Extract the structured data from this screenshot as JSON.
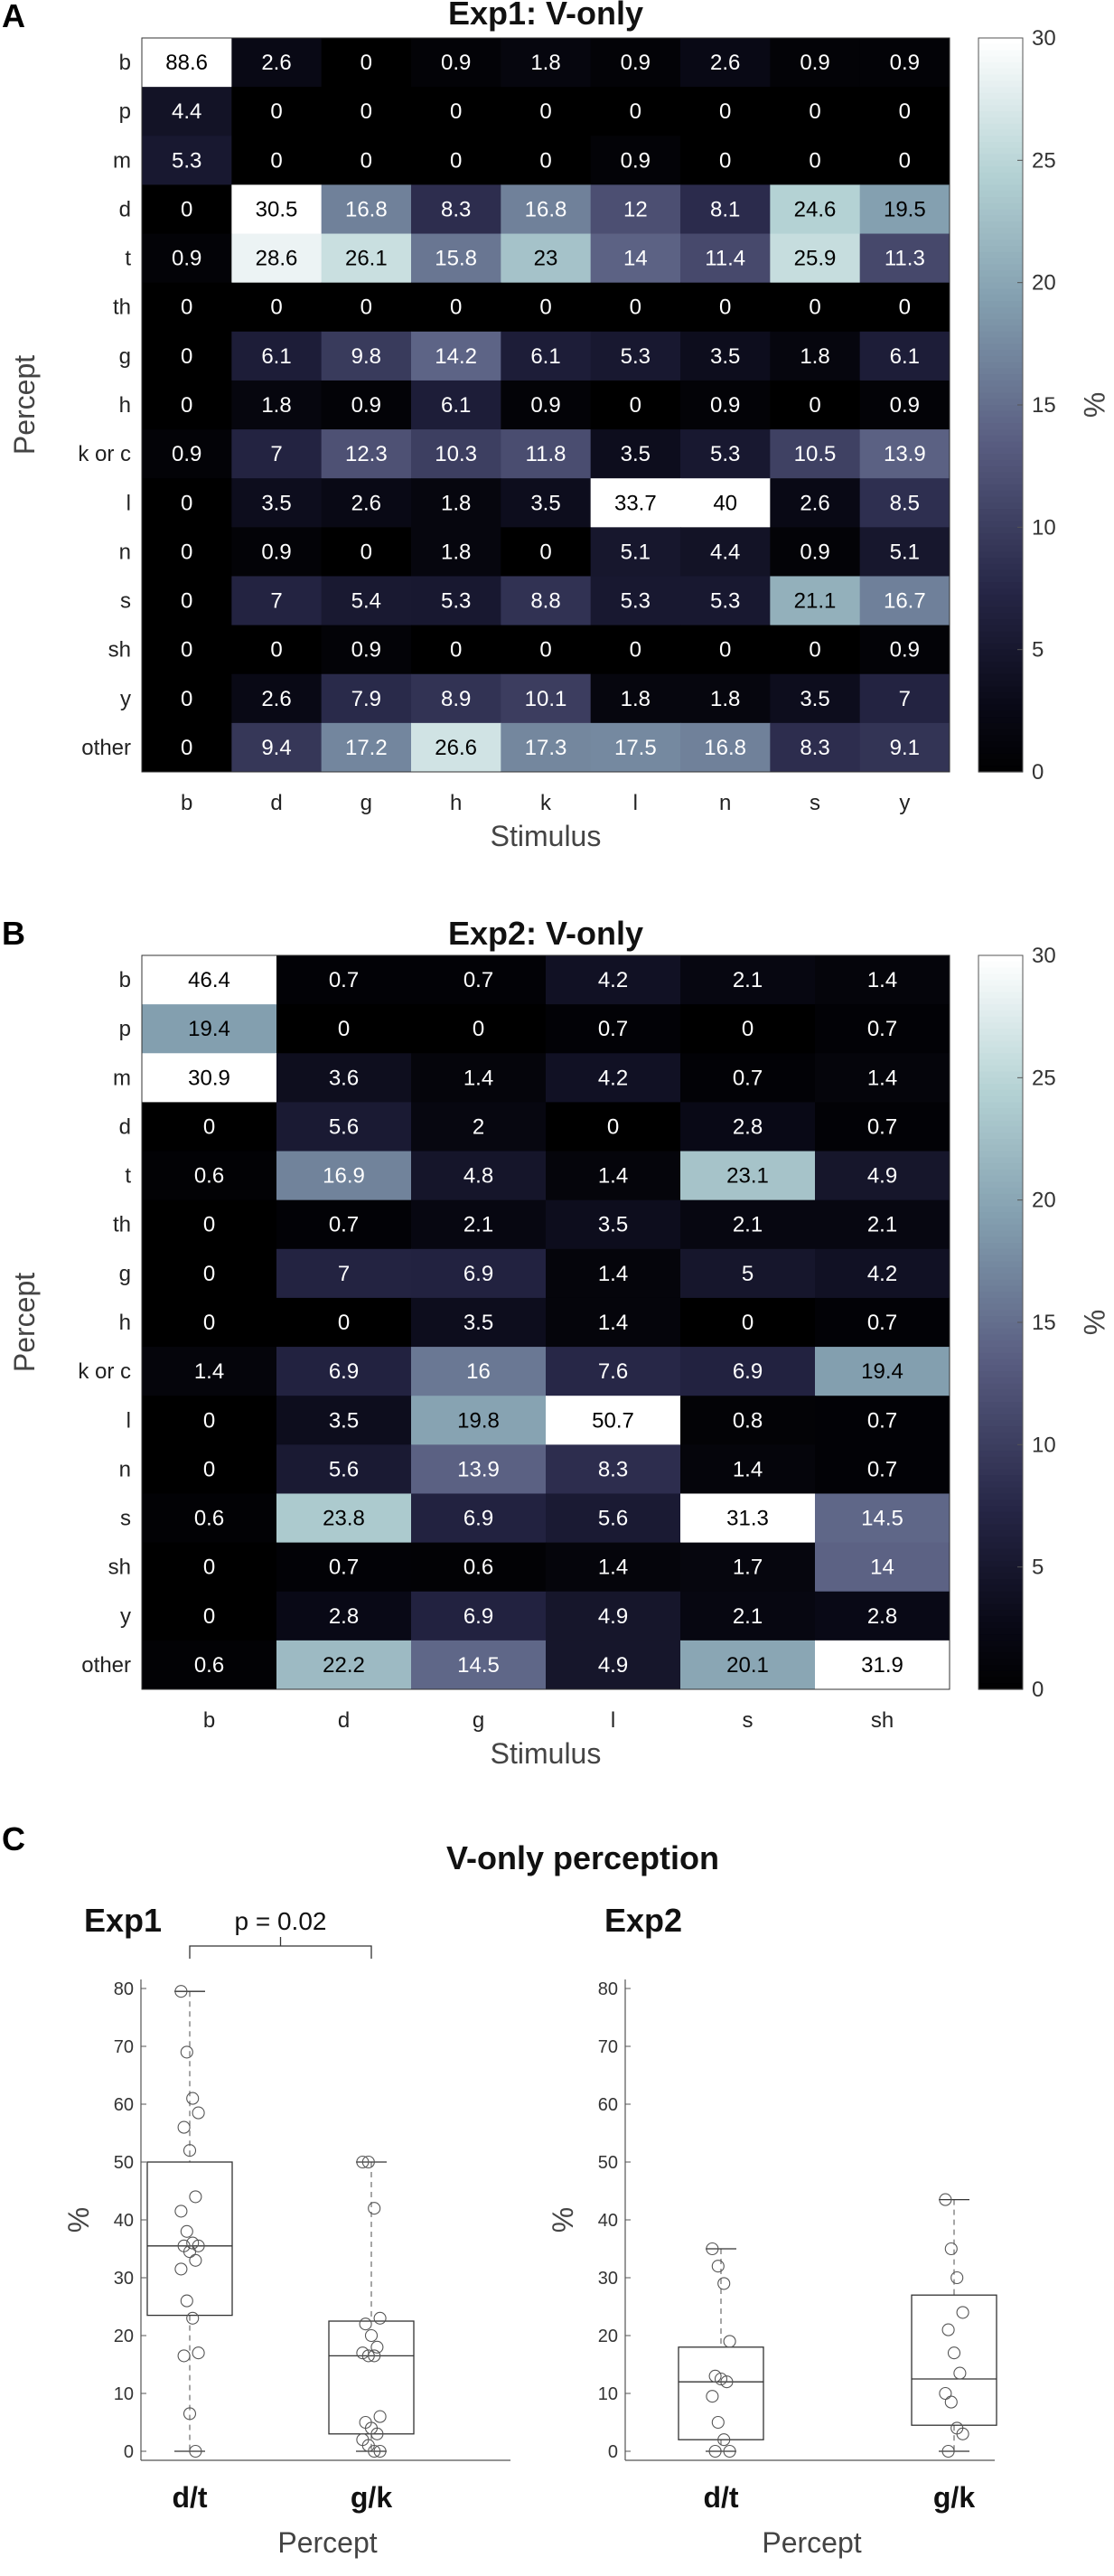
{
  "panels": {
    "a": "A",
    "b": "B",
    "c": "C"
  },
  "chart_data": [
    {
      "type": "heatmap",
      "title": "Exp1: V-only",
      "xlabel": "Stimulus",
      "ylabel": "Percept",
      "x": [
        "b",
        "d",
        "g",
        "h",
        "k",
        "l",
        "n",
        "s",
        "y"
      ],
      "y": [
        "b",
        "p",
        "m",
        "d",
        "t",
        "th",
        "g",
        "h",
        "k or c",
        "l",
        "n",
        "s",
        "sh",
        "y",
        "other"
      ],
      "values": [
        [
          88.6,
          2.6,
          0,
          0.9,
          1.8,
          0.9,
          2.6,
          0.9,
          0.9
        ],
        [
          4.4,
          0,
          0,
          0,
          0,
          0,
          0,
          0,
          0
        ],
        [
          5.3,
          0,
          0,
          0,
          0,
          0.9,
          0,
          0,
          0
        ],
        [
          0,
          30.5,
          16.8,
          8.3,
          16.8,
          12,
          8.1,
          24.6,
          19.5
        ],
        [
          0.9,
          28.6,
          26.1,
          15.8,
          23,
          14,
          11.4,
          25.9,
          11.3
        ],
        [
          0,
          0,
          0,
          0,
          0,
          0,
          0,
          0,
          0
        ],
        [
          0,
          6.1,
          9.8,
          14.2,
          6.1,
          5.3,
          3.5,
          1.8,
          6.1
        ],
        [
          0,
          1.8,
          0.9,
          6.1,
          0.9,
          0,
          0.9,
          0,
          0.9
        ],
        [
          0.9,
          7,
          12.3,
          10.3,
          11.8,
          3.5,
          5.3,
          10.5,
          13.9
        ],
        [
          0,
          3.5,
          2.6,
          1.8,
          3.5,
          33.7,
          40,
          2.6,
          8.5
        ],
        [
          0,
          0.9,
          0,
          1.8,
          0,
          5.1,
          4.4,
          0.9,
          5.1
        ],
        [
          0,
          7,
          5.4,
          5.3,
          8.8,
          5.3,
          5.3,
          21.1,
          16.7
        ],
        [
          0,
          0,
          0.9,
          0,
          0,
          0,
          0,
          0,
          0.9
        ],
        [
          0,
          2.6,
          7.9,
          8.9,
          10.1,
          1.8,
          1.8,
          3.5,
          7
        ],
        [
          0,
          9.4,
          17.2,
          26.6,
          17.3,
          17.5,
          16.8,
          8.3,
          9.1
        ]
      ],
      "colorbar": {
        "label": "%",
        "range": [
          0,
          30
        ],
        "ticks": [
          0,
          5,
          10,
          15,
          20,
          25,
          30
        ]
      }
    },
    {
      "type": "heatmap",
      "title": "Exp2: V-only",
      "xlabel": "Stimulus",
      "ylabel": "Percept",
      "x": [
        "b",
        "d",
        "g",
        "l",
        "s",
        "sh"
      ],
      "y": [
        "b",
        "p",
        "m",
        "d",
        "t",
        "th",
        "g",
        "h",
        "k or c",
        "l",
        "n",
        "s",
        "sh",
        "y",
        "other"
      ],
      "values": [
        [
          46.4,
          0.7,
          0.7,
          4.2,
          2.1,
          1.4
        ],
        [
          19.4,
          0,
          0,
          0.7,
          0,
          0.7
        ],
        [
          30.9,
          3.6,
          1.4,
          4.2,
          0.7,
          1.4
        ],
        [
          0,
          5.6,
          2,
          0,
          2.8,
          0.7
        ],
        [
          0.6,
          16.9,
          4.8,
          1.4,
          23.1,
          4.9
        ],
        [
          0,
          0.7,
          2.1,
          3.5,
          2.1,
          2.1
        ],
        [
          0,
          7,
          6.9,
          1.4,
          5,
          4.2
        ],
        [
          0,
          0,
          3.5,
          1.4,
          0,
          0.7
        ],
        [
          1.4,
          6.9,
          16,
          7.6,
          6.9,
          19.4
        ],
        [
          0,
          3.5,
          19.8,
          50.7,
          0.8,
          0.7
        ],
        [
          0,
          5.6,
          13.9,
          8.3,
          1.4,
          0.7
        ],
        [
          0.6,
          23.8,
          6.9,
          5.6,
          31.3,
          14.5
        ],
        [
          0,
          0.7,
          0.6,
          1.4,
          1.7,
          14
        ],
        [
          0,
          2.8,
          6.9,
          4.9,
          2.1,
          2.8
        ],
        [
          0.6,
          22.2,
          14.5,
          4.9,
          20.1,
          31.9
        ]
      ],
      "colorbar": {
        "label": "%",
        "range": [
          0,
          30
        ],
        "ticks": [
          0,
          5,
          10,
          15,
          20,
          25,
          30
        ]
      }
    },
    {
      "type": "box",
      "title": "V-only perception",
      "subtitle": "Exp1",
      "xlabel": "Percept",
      "ylabel": "%",
      "categories": [
        "d/t",
        "g/k"
      ],
      "ylim": [
        0,
        80
      ],
      "yticks": [
        0,
        10,
        20,
        30,
        40,
        50,
        60,
        70,
        80
      ],
      "annotation": "p = 0.02",
      "series": [
        {
          "name": "d/t",
          "whisker_low": 0,
          "q1": 23.5,
          "median": 35.5,
          "q3": 50,
          "whisker_high": 79.5,
          "points": [
            79.5,
            69,
            61,
            58.5,
            56,
            52,
            44,
            41.5,
            38,
            36,
            35.5,
            35.5,
            34.5,
            33,
            31.5,
            26,
            23,
            17,
            16.5,
            6.5,
            0
          ]
        },
        {
          "name": "g/k",
          "whisker_low": 0,
          "q1": 3,
          "median": 16.5,
          "q3": 22.5,
          "whisker_high": 50,
          "points": [
            50,
            50,
            42,
            23,
            22,
            20,
            18,
            17,
            16.5,
            16.5,
            6,
            5,
            4,
            3,
            2,
            1,
            0,
            0
          ]
        }
      ]
    },
    {
      "type": "box",
      "subtitle": "Exp2",
      "xlabel": "Percept",
      "ylabel": "%",
      "categories": [
        "d/t",
        "g/k"
      ],
      "ylim": [
        0,
        80
      ],
      "yticks": [
        0,
        10,
        20,
        30,
        40,
        50,
        60,
        70,
        80
      ],
      "series": [
        {
          "name": "d/t",
          "whisker_low": 0,
          "q1": 2,
          "median": 12,
          "q3": 18,
          "whisker_high": 35,
          "points": [
            35,
            32,
            29,
            19,
            13,
            12.5,
            12,
            9.5,
            5,
            2,
            0,
            0
          ]
        },
        {
          "name": "g/k",
          "whisker_low": 0,
          "q1": 4.5,
          "median": 12.5,
          "q3": 27,
          "whisker_high": 43.5,
          "points": [
            43.5,
            35,
            30,
            24,
            21,
            17,
            13.5,
            10,
            8.5,
            4,
            3,
            0
          ]
        }
      ]
    }
  ]
}
